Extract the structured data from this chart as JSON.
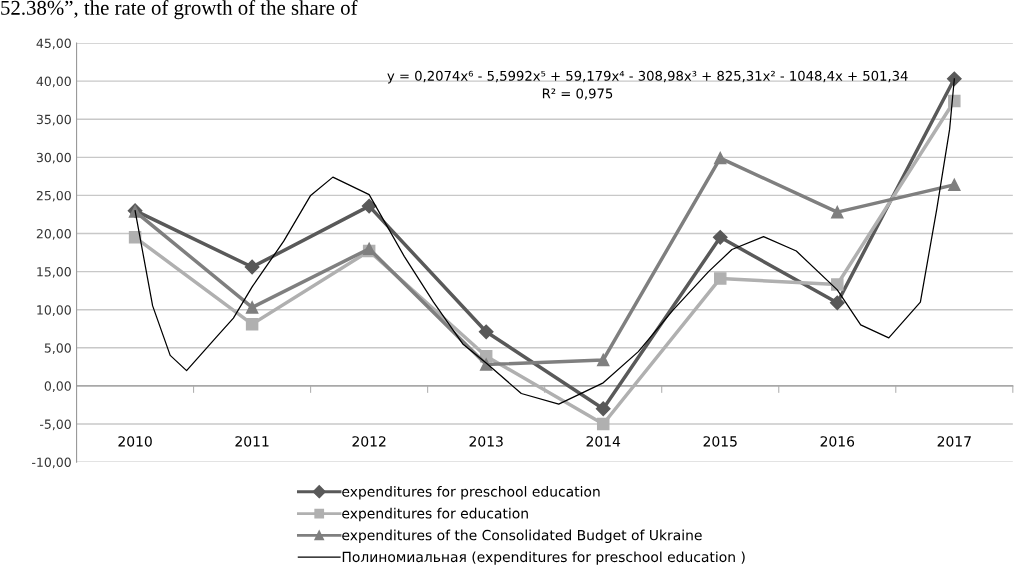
{
  "chart_data": {
    "type": "line",
    "x": [
      2010,
      2011,
      2012,
      2013,
      2014,
      2015,
      2016,
      2017
    ],
    "xlim": [
      2009.5,
      2017.5
    ],
    "xticks": [
      2010,
      2011,
      2012,
      2013,
      2014,
      2015,
      2016,
      2017
    ],
    "series": [
      {
        "name": "expenditures for preschool education",
        "color": "#595959",
        "marker": "diamond",
        "values": [
          23.0,
          15.6,
          23.6,
          7.1,
          -3.0,
          19.5,
          10.9,
          40.3
        ]
      },
      {
        "name": "expenditures for education",
        "color": "#b0b0b0",
        "marker": "square",
        "values": [
          19.5,
          8.1,
          17.7,
          3.9,
          -5.0,
          14.1,
          13.3,
          37.4
        ]
      },
      {
        "name": "expenditures of the Consolidated Budget of Ukraine",
        "color": "#7f7f7f",
        "marker": "triangle",
        "values": [
          22.9,
          10.3,
          18.0,
          2.8,
          3.4,
          29.9,
          22.8,
          26.4
        ]
      },
      {
        "name": "Полиномиальная (expenditures for preschool education )",
        "color": "#000000",
        "marker": "none",
        "type": "line",
        "x": [
          2010,
          2010.15,
          2010.3,
          2010.44,
          2010.7,
          2010.84,
          2011,
          2011.27,
          2011.5,
          2011.69,
          2012,
          2012.3,
          2012.55,
          2012.8,
          2013,
          2013.3,
          2013.62,
          2014,
          2014.3,
          2014.6,
          2014.9,
          2015.1,
          2015.37,
          2015.65,
          2016,
          2016.2,
          2016.44,
          2016.71,
          2016.85,
          2016.96,
          2017
        ],
        "values": [
          23.0,
          10.5,
          4.0,
          2.0,
          6.5,
          8.9,
          13.0,
          19.0,
          25.0,
          27.4,
          25.1,
          17.0,
          11.0,
          5.5,
          3.0,
          -1.0,
          -2.4,
          0.4,
          4.5,
          10.0,
          15.0,
          17.9,
          19.6,
          17.7,
          12.6,
          8.0,
          6.3,
          11.0,
          23.2,
          33.7,
          40.3
        ]
      }
    ],
    "ylim": [
      -10,
      45
    ],
    "yticks": [
      {
        "value": -10,
        "label": "-10,00"
      },
      {
        "value": -5,
        "label": "-5,00"
      },
      {
        "value": 0,
        "label": "0,00"
      },
      {
        "value": 5,
        "label": "5,00"
      },
      {
        "value": 10,
        "label": "10,00"
      },
      {
        "value": 15,
        "label": "15,00"
      },
      {
        "value": 20,
        "label": "20,00"
      },
      {
        "value": 25,
        "label": "25,00"
      },
      {
        "value": 30,
        "label": "30,00"
      },
      {
        "value": 35,
        "label": "35,00"
      },
      {
        "value": 40,
        "label": "40,00"
      },
      {
        "value": 45,
        "label": "45,00"
      }
    ],
    "grid": "y",
    "legend": "bottom",
    "line_style": "solid",
    "annotations": [
      "52.38%”, the rate of growth of the share of",
      "y = 0,2074x⁶ - 5,5992x⁵ + 59,179x⁴ - 308,98x³ + 825,31x² - 1048,4x + 501,34",
      "R² = 0,975"
    ]
  }
}
